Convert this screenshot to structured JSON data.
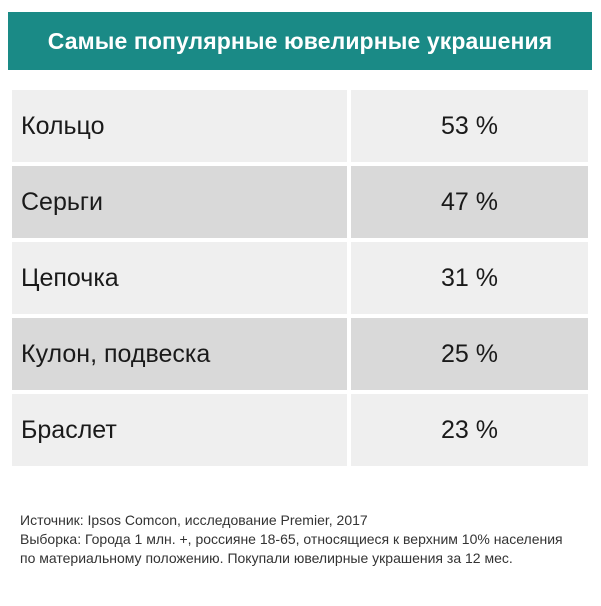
{
  "chart_data": {
    "type": "table",
    "title": "Самые популярные ювелирные украшения",
    "categories": [
      "Кольцо",
      "Серьги",
      "Цепочка",
      "Кулон, подвеска",
      "Браслет"
    ],
    "values": [
      53,
      47,
      31,
      25,
      23
    ],
    "value_labels": [
      "53 %",
      "47 %",
      "31 %",
      "25 %",
      "23 %"
    ],
    "unit": "%"
  },
  "footer": {
    "source": "Источник: Ipsos Comcon, исследование Premier, 2017",
    "sample": "Выборка: Города 1 млн. +, россияне 18-65, относящиеся к верхним 10% населения по материальному положению. Покупали ювелирные украшения за 12 мес."
  },
  "colors": {
    "header_bg": "#1a8a86",
    "row_light": "#efefef",
    "row_dark": "#d9d9d9"
  }
}
